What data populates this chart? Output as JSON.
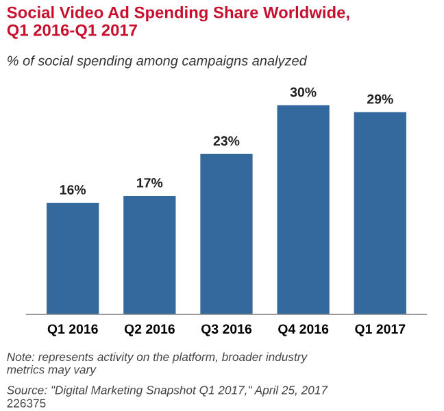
{
  "chart_data": {
    "type": "bar",
    "title": "Social Video Ad Spending Share Worldwide,\nQ1 2016-Q1 2017",
    "subtitle": "% of social spending among campaigns analyzed",
    "categories": [
      "Q1 2016",
      "Q2 2016",
      "Q3 2016",
      "Q4 2016",
      "Q1 2017"
    ],
    "values": [
      16,
      17,
      23,
      30,
      29
    ],
    "value_labels": [
      "16%",
      "17%",
      "23%",
      "30%",
      "29%"
    ],
    "color": "#33699c",
    "grid": false,
    "annotations": [
      "Note: represents activity on the platform, broader industry\nmetrics may vary",
      "Source: \"Digital Marketing Snapshot Q1 2017,\" April 25, 2017",
      "226375"
    ]
  }
}
